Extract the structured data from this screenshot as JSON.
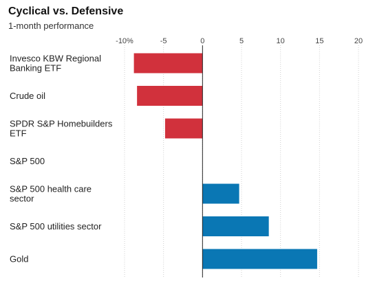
{
  "chart_data": {
    "type": "bar",
    "orientation": "horizontal",
    "title": "Cyclical vs. Defensive",
    "subtitle": "1-month performance",
    "xlabel": "",
    "ylabel": "",
    "xlim": [
      -10,
      20
    ],
    "ticks": [
      -10,
      -5,
      0,
      5,
      10,
      15,
      20
    ],
    "tick_labels": [
      "-10%",
      "-5",
      "0",
      "5",
      "10",
      "15",
      "20"
    ],
    "grid": true,
    "categories": [
      "Invesco KBW Regional Banking ETF",
      "Crude oil",
      "SPDR S&P Homebuilders ETF",
      "S&P 500",
      "S&P 500 health care sector",
      "S&P 500 utilities sector",
      "Gold"
    ],
    "values": [
      -8.8,
      -8.4,
      -4.8,
      0,
      4.7,
      8.5,
      14.7
    ],
    "colors": {
      "negative": "#d1313c",
      "positive": "#0a77b4"
    }
  }
}
